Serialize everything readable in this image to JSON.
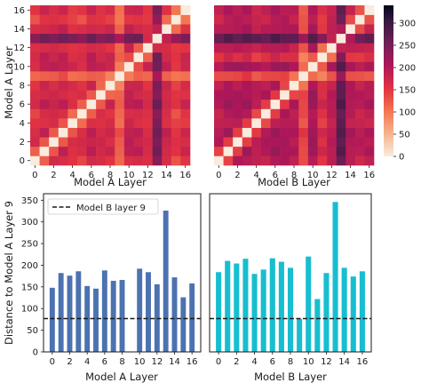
{
  "chart_data": [
    {
      "type": "heatmap",
      "xlabel": "Model A Layer",
      "ylabel": "Model A Layer",
      "layers": [
        0,
        1,
        2,
        3,
        4,
        5,
        6,
        7,
        8,
        9,
        10,
        11,
        12,
        13,
        14,
        15,
        16
      ],
      "x_ticks": [
        0,
        2,
        4,
        6,
        8,
        10,
        12,
        14,
        16
      ],
      "y_ticks": [
        0,
        2,
        4,
        6,
        8,
        10,
        12,
        14,
        16
      ],
      "colorscale_range": [
        0,
        340
      ],
      "distance_to_layer9": [
        148,
        182,
        176,
        186,
        152,
        146,
        188,
        164,
        166,
        0,
        192,
        184,
        156,
        326,
        172,
        126,
        158
      ]
    },
    {
      "type": "heatmap",
      "xlabel": "Model B Layer",
      "ylabel": "",
      "layers": [
        0,
        1,
        2,
        3,
        4,
        5,
        6,
        7,
        8,
        9,
        10,
        11,
        12,
        13,
        14,
        15,
        16
      ],
      "x_ticks": [
        0,
        2,
        4,
        6,
        8,
        10,
        12,
        14,
        16
      ],
      "colorscale_range": [
        0,
        340
      ],
      "distance_to_layer9": [
        184,
        210,
        204,
        215,
        180,
        190,
        216,
        208,
        194,
        76,
        220,
        122,
        182,
        346,
        194,
        174,
        186
      ]
    },
    {
      "type": "colorbar",
      "ticks": [
        0,
        50,
        100,
        150,
        200,
        250,
        300
      ],
      "range": [
        0,
        340
      ]
    },
    {
      "type": "bar",
      "xlabel": "Model A Layer",
      "ylabel": "Distance to Model A Layer 9",
      "categories": [
        0,
        1,
        2,
        3,
        4,
        5,
        6,
        7,
        8,
        9,
        10,
        11,
        12,
        13,
        14,
        15,
        16
      ],
      "x_ticks": [
        0,
        2,
        4,
        6,
        8,
        10,
        12,
        14,
        16
      ],
      "values": [
        148,
        182,
        176,
        186,
        152,
        146,
        188,
        164,
        166,
        0,
        192,
        184,
        156,
        326,
        172,
        126,
        158
      ],
      "ylim": [
        0,
        365
      ],
      "y_ticks": [
        0,
        50,
        100,
        150,
        200,
        250,
        300,
        350
      ],
      "reference_line": {
        "label": "Model B layer 9",
        "value": 77,
        "style": "dashed"
      },
      "legend_position": "upper-left",
      "color": "#4c72b0"
    },
    {
      "type": "bar",
      "xlabel": "Model B Layer",
      "ylabel": "",
      "categories": [
        0,
        1,
        2,
        3,
        4,
        5,
        6,
        7,
        8,
        9,
        10,
        11,
        12,
        13,
        14,
        15,
        16
      ],
      "x_ticks": [
        0,
        2,
        4,
        6,
        8,
        10,
        12,
        14,
        16
      ],
      "values": [
        184,
        210,
        204,
        215,
        180,
        190,
        216,
        208,
        194,
        76,
        220,
        122,
        182,
        346,
        194,
        174,
        186
      ],
      "ylim": [
        0,
        365
      ],
      "reference_line": {
        "value": 77,
        "style": "dashed"
      },
      "color": "#17becf"
    }
  ]
}
